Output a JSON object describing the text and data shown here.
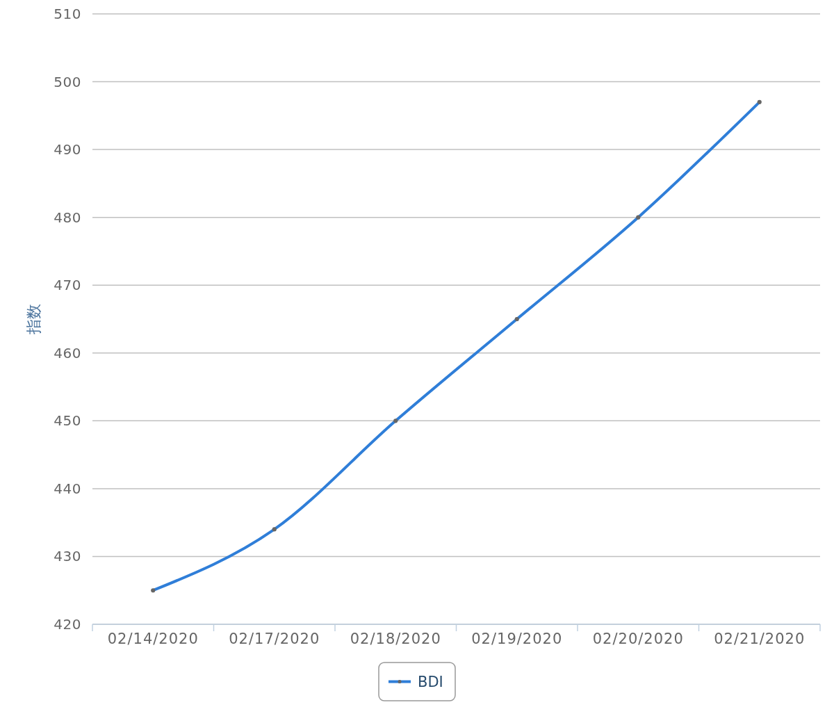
{
  "chart_data": {
    "type": "line",
    "ylabel": "指数",
    "categories": [
      "02/14/2020",
      "02/17/2020",
      "02/18/2020",
      "02/19/2020",
      "02/20/2020",
      "02/21/2020"
    ],
    "series": [
      {
        "name": "BDI",
        "color": "#2f7ed8",
        "values": [
          425,
          434,
          450,
          465,
          480,
          497
        ]
      }
    ],
    "ylim": [
      420,
      510
    ],
    "yticks": [
      420,
      430,
      440,
      450,
      460,
      470,
      480,
      490,
      500,
      510
    ],
    "grid": "y",
    "legend": "bottom",
    "marker": "circle",
    "line_style": "solid"
  }
}
